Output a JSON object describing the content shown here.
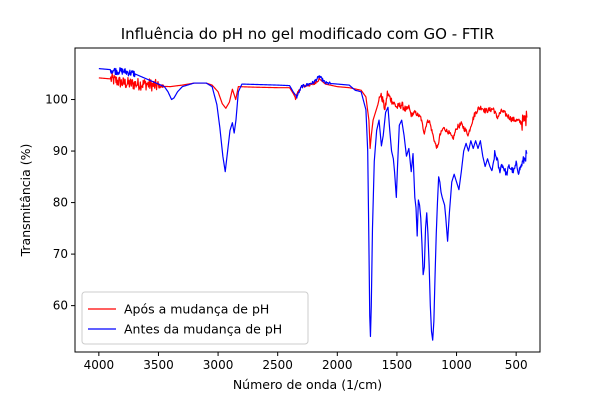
{
  "chart_data": {
    "type": "line",
    "title": "Influência do pH no gel modificado com GO - FTIR",
    "xlabel": "Número de onda (1/cm)",
    "ylabel": "Transmitância (%)",
    "xlim": [
      4200,
      300
    ],
    "ylim": [
      51,
      110
    ],
    "xticks": [
      4000,
      3500,
      3000,
      2500,
      2000,
      1500,
      1000,
      500
    ],
    "yticks": [
      60,
      70,
      80,
      90,
      100
    ],
    "grid": false,
    "legend_position": "lower-left",
    "series": [
      {
        "name": "Após a mudança de pH",
        "color": "#ff0000",
        "noise": [
          [
            3900,
            3500,
            1.2
          ],
          [
            3500,
            3450,
            0.4
          ],
          [
            2350,
            2150,
            0.3
          ],
          [
            1650,
            1400,
            0.7
          ],
          [
            1400,
            1000,
            0.4
          ],
          [
            1000,
            450,
            0.5
          ],
          [
            450,
            400,
            1.5
          ]
        ],
        "points": [
          [
            4000,
            104.2
          ],
          [
            3900,
            104.0
          ],
          [
            3800,
            103.2
          ],
          [
            3700,
            103.0
          ],
          [
            3600,
            103.0
          ],
          [
            3500,
            102.6
          ],
          [
            3400,
            102.5
          ],
          [
            3300,
            102.8
          ],
          [
            3200,
            103.2
          ],
          [
            3100,
            103.2
          ],
          [
            3050,
            102.8
          ],
          [
            3000,
            101.5
          ],
          [
            2965,
            99.2
          ],
          [
            2935,
            98.3
          ],
          [
            2905,
            99.5
          ],
          [
            2880,
            102.0
          ],
          [
            2852,
            100.0
          ],
          [
            2830,
            102.5
          ],
          [
            2700,
            102.4
          ],
          [
            2500,
            102.3
          ],
          [
            2400,
            102.3
          ],
          [
            2370,
            101.2
          ],
          [
            2350,
            100.3
          ],
          [
            2320,
            101.8
          ],
          [
            2300,
            102.5
          ],
          [
            2200,
            103.0
          ],
          [
            2150,
            104.0
          ],
          [
            2100,
            103.0
          ],
          [
            2000,
            102.5
          ],
          [
            1900,
            102.3
          ],
          [
            1800,
            101.8
          ],
          [
            1760,
            100.5
          ],
          [
            1735,
            96.0
          ],
          [
            1725,
            90.5
          ],
          [
            1715,
            93.0
          ],
          [
            1700,
            96.0
          ],
          [
            1660,
            99.0
          ],
          [
            1640,
            101.0
          ],
          [
            1620,
            100.0
          ],
          [
            1600,
            98.0
          ],
          [
            1580,
            101.2
          ],
          [
            1550,
            100.0
          ],
          [
            1500,
            98.5
          ],
          [
            1460,
            99.0
          ],
          [
            1420,
            97.8
          ],
          [
            1400,
            98.5
          ],
          [
            1380,
            97.0
          ],
          [
            1350,
            97.5
          ],
          [
            1300,
            96.5
          ],
          [
            1270,
            93.5
          ],
          [
            1250,
            95.5
          ],
          [
            1230,
            96.0
          ],
          [
            1180,
            91.5
          ],
          [
            1160,
            90.5
          ],
          [
            1140,
            93.0
          ],
          [
            1110,
            94.5
          ],
          [
            1060,
            93.5
          ],
          [
            1030,
            92.3
          ],
          [
            1000,
            94.5
          ],
          [
            960,
            95.2
          ],
          [
            900,
            93.2
          ],
          [
            880,
            95.0
          ],
          [
            850,
            97.0
          ],
          [
            820,
            98.2
          ],
          [
            790,
            98.5
          ],
          [
            760,
            97.8
          ],
          [
            720,
            98.0
          ],
          [
            690,
            98.2
          ],
          [
            660,
            96.5
          ],
          [
            620,
            97.8
          ],
          [
            580,
            97.0
          ],
          [
            540,
            96.2
          ],
          [
            500,
            96.0
          ],
          [
            450,
            95.5
          ],
          [
            430,
            96.0
          ],
          [
            410,
            96.5
          ]
        ]
      },
      {
        "name": "Antes da mudança de pH",
        "color": "#0000ff",
        "noise": [
          [
            3900,
            3700,
            0.7
          ],
          [
            2350,
            2050,
            0.3
          ],
          [
            700,
            450,
            0.6
          ],
          [
            450,
            400,
            1.0
          ]
        ],
        "points": [
          [
            4000,
            106.0
          ],
          [
            3900,
            105.8
          ],
          [
            3850,
            105.5
          ],
          [
            3800,
            105.5
          ],
          [
            3700,
            105.0
          ],
          [
            3600,
            104.0
          ],
          [
            3500,
            103.0
          ],
          [
            3450,
            102.5
          ],
          [
            3420,
            101.5
          ],
          [
            3390,
            100.0
          ],
          [
            3370,
            100.3
          ],
          [
            3340,
            101.5
          ],
          [
            3300,
            102.5
          ],
          [
            3200,
            103.2
          ],
          [
            3100,
            103.2
          ],
          [
            3050,
            102.5
          ],
          [
            3010,
            99.0
          ],
          [
            2985,
            94.5
          ],
          [
            2960,
            89.0
          ],
          [
            2940,
            86.0
          ],
          [
            2920,
            90.0
          ],
          [
            2900,
            94.0
          ],
          [
            2880,
            95.5
          ],
          [
            2865,
            93.5
          ],
          [
            2850,
            96.0
          ],
          [
            2830,
            101.5
          ],
          [
            2800,
            103.0
          ],
          [
            2500,
            102.8
          ],
          [
            2400,
            102.7
          ],
          [
            2370,
            101.5
          ],
          [
            2340,
            100.5
          ],
          [
            2320,
            101.5
          ],
          [
            2300,
            102.5
          ],
          [
            2200,
            103.3
          ],
          [
            2150,
            104.5
          ],
          [
            2100,
            103.2
          ],
          [
            2000,
            103.0
          ],
          [
            1900,
            102.8
          ],
          [
            1850,
            101.8
          ],
          [
            1800,
            101.5
          ],
          [
            1760,
            98.0
          ],
          [
            1745,
            90.0
          ],
          [
            1735,
            72.0
          ],
          [
            1728,
            58.0
          ],
          [
            1722,
            54.0
          ],
          [
            1715,
            60.0
          ],
          [
            1705,
            75.0
          ],
          [
            1690,
            88.0
          ],
          [
            1670,
            94.0
          ],
          [
            1650,
            96.0
          ],
          [
            1630,
            91.0
          ],
          [
            1615,
            93.0
          ],
          [
            1595,
            97.5
          ],
          [
            1575,
            98.5
          ],
          [
            1560,
            94.0
          ],
          [
            1545,
            90.0
          ],
          [
            1530,
            88.5
          ],
          [
            1520,
            86.0
          ],
          [
            1505,
            81.0
          ],
          [
            1495,
            87.0
          ],
          [
            1480,
            95.0
          ],
          [
            1460,
            96.0
          ],
          [
            1440,
            93.0
          ],
          [
            1420,
            89.0
          ],
          [
            1400,
            90.5
          ],
          [
            1380,
            86.0
          ],
          [
            1365,
            89.5
          ],
          [
            1350,
            81.0
          ],
          [
            1340,
            79.0
          ],
          [
            1330,
            73.5
          ],
          [
            1320,
            80.5
          ],
          [
            1310,
            79.5
          ],
          [
            1300,
            77.0
          ],
          [
            1290,
            72.0
          ],
          [
            1280,
            66.0
          ],
          [
            1270,
            67.5
          ],
          [
            1260,
            75.0
          ],
          [
            1250,
            78.0
          ],
          [
            1240,
            74.0
          ],
          [
            1230,
            68.0
          ],
          [
            1220,
            60.0
          ],
          [
            1210,
            55.0
          ],
          [
            1200,
            53.3
          ],
          [
            1190,
            57.0
          ],
          [
            1180,
            66.0
          ],
          [
            1170,
            74.0
          ],
          [
            1160,
            80.0
          ],
          [
            1150,
            85.0
          ],
          [
            1140,
            84.0
          ],
          [
            1130,
            82.0
          ],
          [
            1120,
            81.0
          ],
          [
            1100,
            79.5
          ],
          [
            1090,
            77.0
          ],
          [
            1075,
            72.5
          ],
          [
            1060,
            78.0
          ],
          [
            1040,
            84.0
          ],
          [
            1020,
            85.5
          ],
          [
            1000,
            84.0
          ],
          [
            980,
            82.5
          ],
          [
            960,
            86.0
          ],
          [
            940,
            90.0
          ],
          [
            920,
            91.5
          ],
          [
            900,
            90.0
          ],
          [
            880,
            92.0
          ],
          [
            860,
            90.5
          ],
          [
            840,
            92.0
          ],
          [
            820,
            90.5
          ],
          [
            800,
            92.0
          ],
          [
            780,
            89.0
          ],
          [
            760,
            87.0
          ],
          [
            740,
            88.5
          ],
          [
            720,
            87.0
          ],
          [
            700,
            86.0
          ],
          [
            680,
            89.5
          ],
          [
            660,
            88.5
          ],
          [
            640,
            86.0
          ],
          [
            620,
            87.5
          ],
          [
            600,
            86.5
          ],
          [
            580,
            85.5
          ],
          [
            560,
            87.0
          ],
          [
            540,
            86.5
          ],
          [
            520,
            86.0
          ],
          [
            500,
            87.5
          ],
          [
            480,
            86.0
          ],
          [
            460,
            87.0
          ],
          [
            440,
            88.0
          ],
          [
            420,
            89.0
          ],
          [
            410,
            89.5
          ]
        ]
      }
    ]
  }
}
